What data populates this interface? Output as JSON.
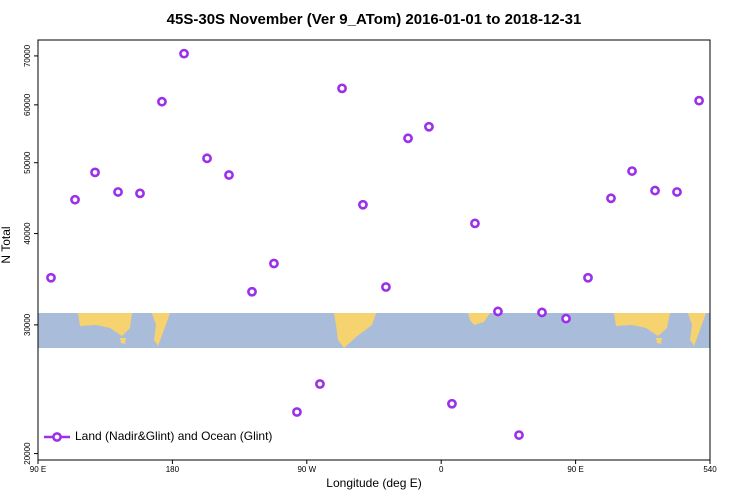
{
  "chart_data": {
    "type": "scatter",
    "title": "45S-30S November (Ver 9_ATom)   2016-01-01 to 2018-12-31",
    "x_label": "Longitude (deg E)",
    "y_label": "N Total",
    "log_y": true,
    "legend_position": "lower left",
    "xlim": [
      90,
      540
    ],
    "xticks": [
      {
        "value": 90,
        "label": "90 E"
      },
      180,
      {
        "value": 270,
        "label": "90 W"
      },
      {
        "value": 360,
        "label": "0"
      },
      {
        "value": 450,
        "label": "90 E"
      },
      540
    ],
    "ylim": [
      19600,
      73600
    ],
    "yticks": [
      20000,
      30000,
      40000,
      50000,
      60000,
      70000
    ],
    "series": [
      {
        "name": "Land (Nadir&Glint) and Ocean (Glint)",
        "color": "#9b30e8",
        "x": [
          98.7,
          114.8,
          128.2,
          143.6,
          158.3,
          173.0,
          187.8,
          203.2,
          217.9,
          233.3,
          248.0,
          263.4,
          278.8,
          293.6,
          307.6,
          323.0,
          337.8,
          351.8,
          367.2,
          382.6,
          398.0,
          412.1,
          427.5,
          443.6,
          458.3,
          473.7,
          487.8,
          503.2,
          517.9,
          532.7
        ],
        "values": [
          34800,
          44500,
          48500,
          45600,
          45400,
          60600,
          70500,
          50700,
          48100,
          33300,
          36400,
          22800,
          24900,
          63200,
          43800,
          33800,
          54000,
          56000,
          23400,
          41300,
          31300,
          21200,
          31200,
          30600,
          34800,
          44700,
          48700,
          45800,
          45600,
          60800
        ]
      }
    ]
  }
}
